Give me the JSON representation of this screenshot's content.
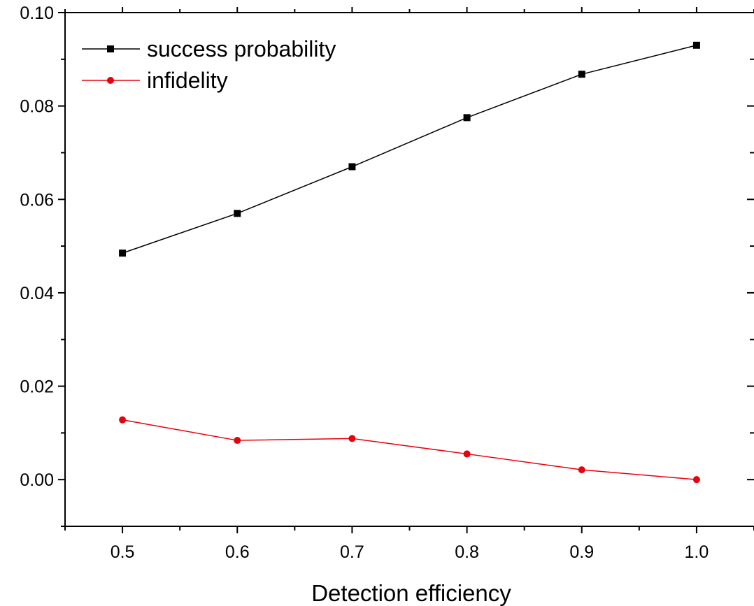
{
  "chart_data": {
    "type": "line",
    "xlabel": "Detection efficiency",
    "ylabel": "",
    "xlim": [
      0.45,
      1.05
    ],
    "ylim": [
      -0.01,
      0.1
    ],
    "x_ticks": [
      "0.5",
      "0.6",
      "0.7",
      "0.8",
      "0.9",
      "1.0"
    ],
    "y_ticks": [
      "0.00",
      "0.02",
      "0.04",
      "0.06",
      "0.08",
      "0.10"
    ],
    "x": [
      0.5,
      0.6,
      0.7,
      0.8,
      0.9,
      1.0
    ],
    "series": [
      {
        "name": "success probability",
        "values": [
          0.0485,
          0.057,
          0.067,
          0.0775,
          0.0868,
          0.093
        ],
        "color": "#000000",
        "marker": "square"
      },
      {
        "name": "infidelity",
        "values": [
          0.0128,
          0.0084,
          0.0088,
          0.0055,
          0.0021,
          0.0
        ],
        "color": "#e8000b",
        "marker": "circle"
      }
    ],
    "legend_position": "top-left",
    "grid": false
  }
}
